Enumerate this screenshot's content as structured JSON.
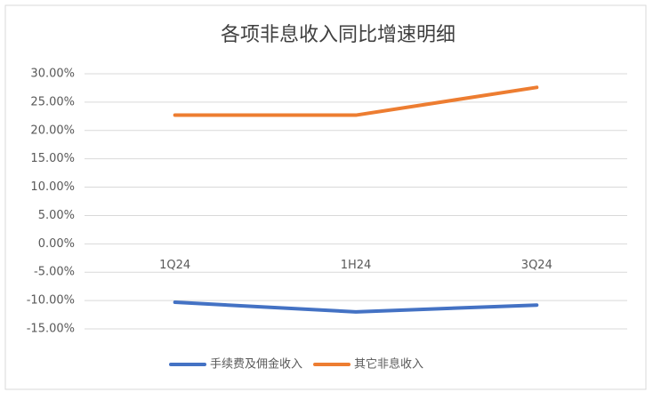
{
  "chart_data": {
    "type": "line",
    "title": "各项非息收入同比增速明细",
    "categories": [
      "1Q24",
      "1H24",
      "3Q24"
    ],
    "series": [
      {
        "name": "手续费及佣金收入",
        "color": "#4472c4",
        "values": [
          -10.3,
          -12.0,
          -10.8
        ]
      },
      {
        "name": "其它非息收入",
        "color": "#ed7d31",
        "values": [
          22.7,
          22.7,
          27.6
        ]
      }
    ],
    "ylim": [
      -15,
      30
    ],
    "yticks": [
      {
        "value": -15,
        "label": "-15.00%"
      },
      {
        "value": -10,
        "label": "-10.00%"
      },
      {
        "value": -5,
        "label": "-5.00%"
      },
      {
        "value": 0,
        "label": "0.00%"
      },
      {
        "value": 5,
        "label": "5.00%"
      },
      {
        "value": 10,
        "label": "10.00%"
      },
      {
        "value": 15,
        "label": "15.00%"
      },
      {
        "value": 20,
        "label": "20.00%"
      },
      {
        "value": 25,
        "label": "25.00%"
      },
      {
        "value": 30,
        "label": "30.00%"
      }
    ],
    "grid": true,
    "legend": "bottom"
  }
}
